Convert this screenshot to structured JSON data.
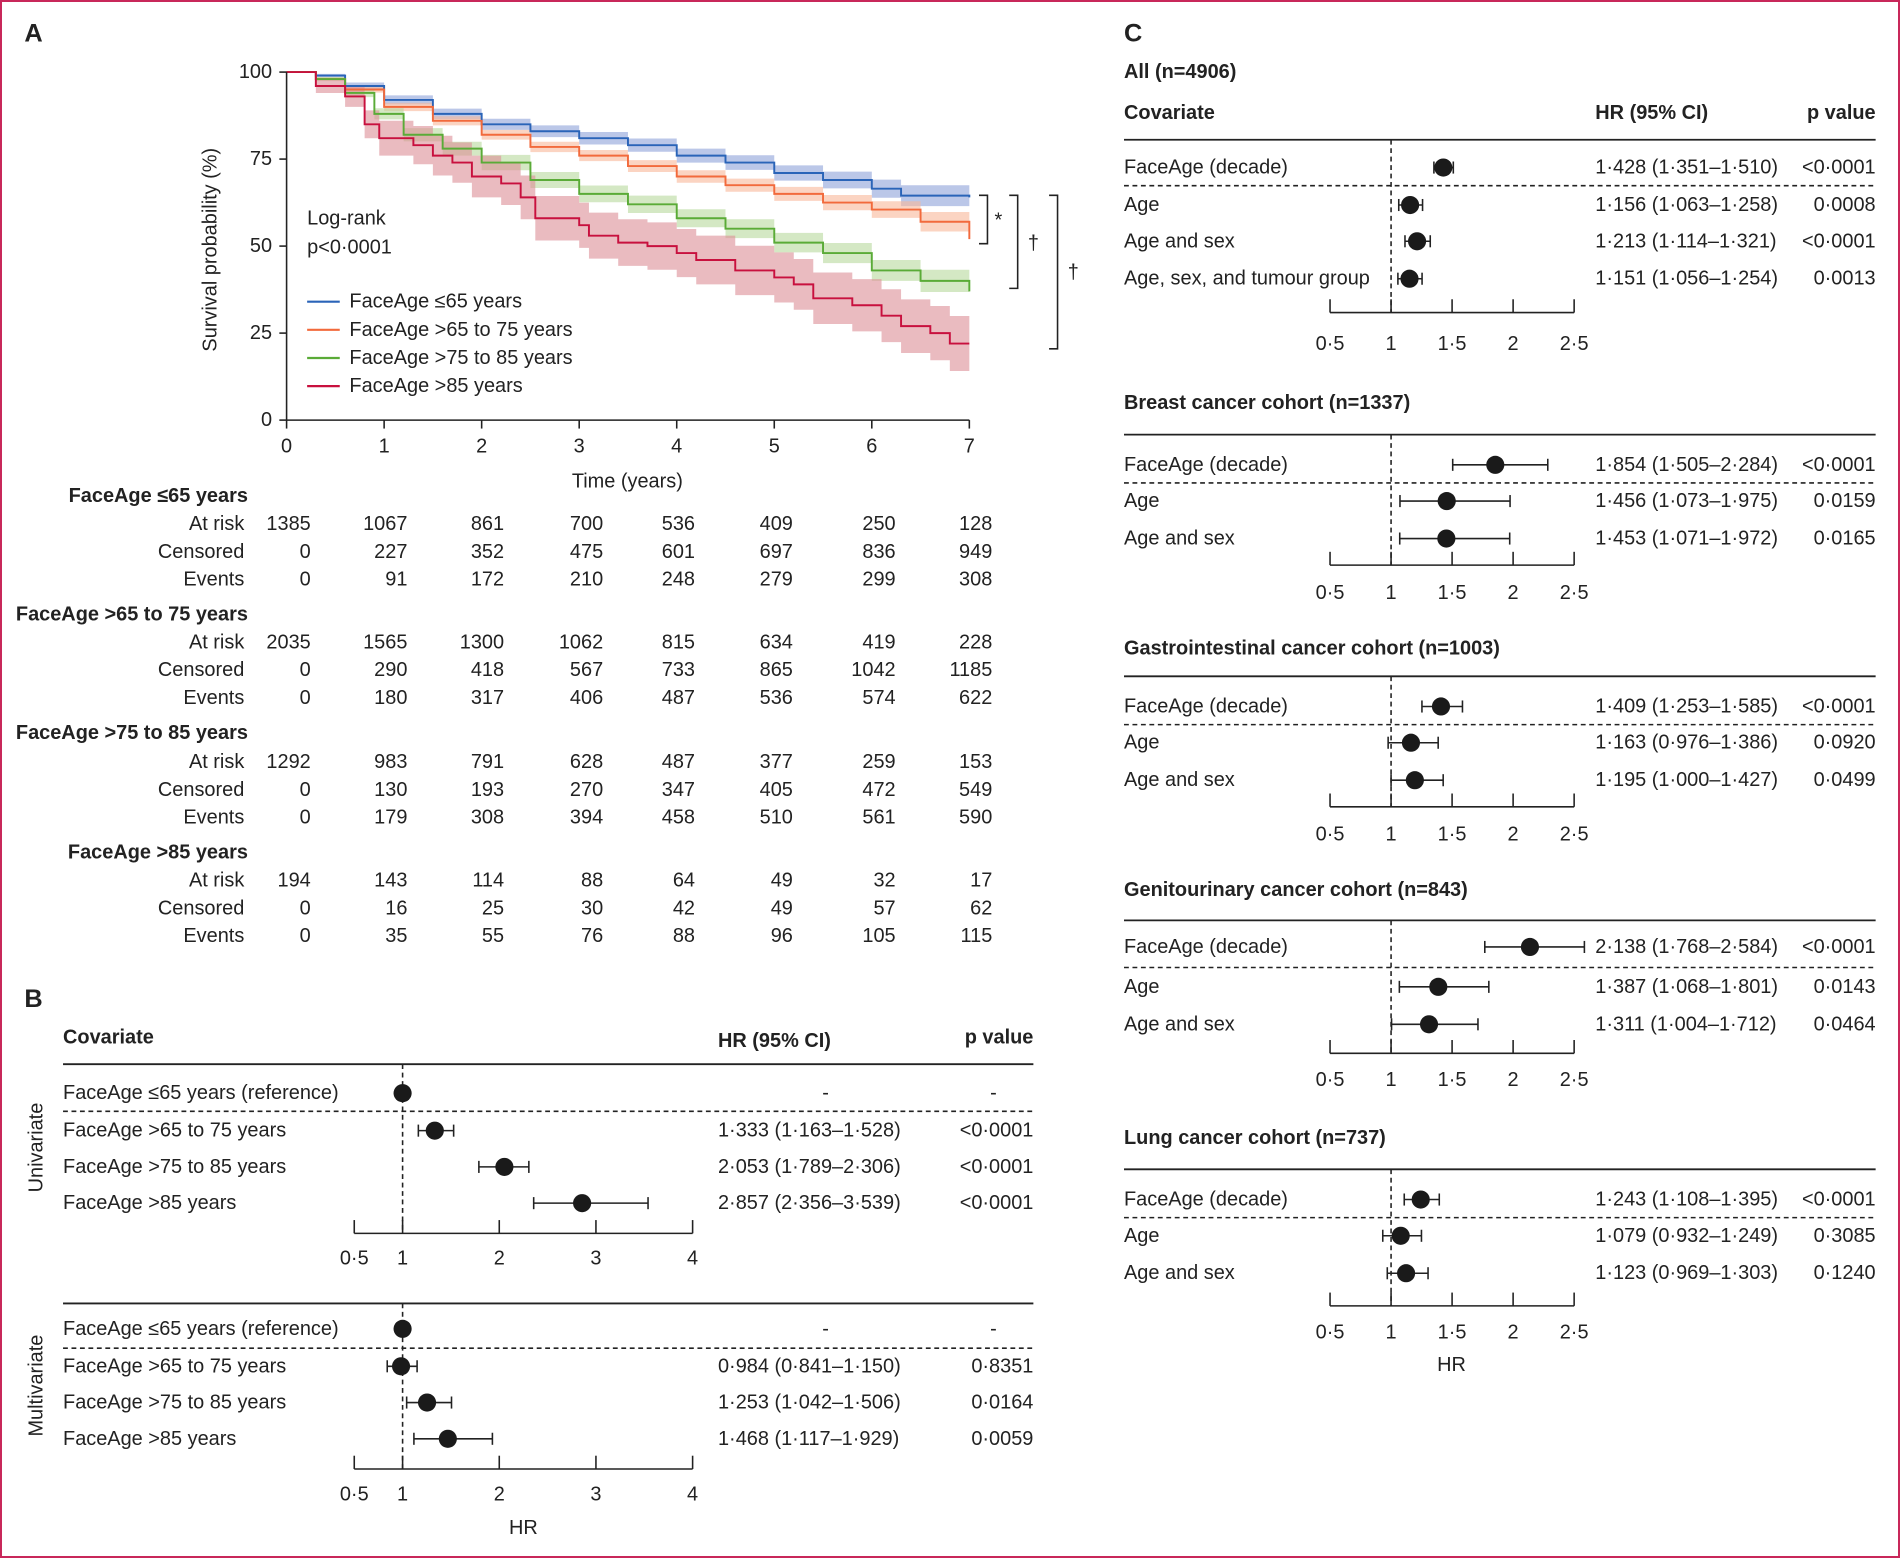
{
  "panels": {
    "a": "A",
    "b": "B",
    "c": "C"
  },
  "chart_data": [
    {
      "type": "line",
      "panel": "A",
      "xlabel": "Time (years)",
      "ylabel": "Survival probability (%)",
      "xlim": [
        0,
        7
      ],
      "ylim": [
        0,
        100
      ],
      "xticks": [
        "0",
        "1",
        "2",
        "3",
        "4",
        "5",
        "6",
        "7"
      ],
      "yticks": [
        "0",
        "25",
        "50",
        "75",
        "100"
      ],
      "grid": false,
      "legend_placement": "center-left",
      "annotation": [
        "Log-rank",
        "p<0·0001"
      ],
      "series": [
        {
          "name": "FaceAge ≤65 years",
          "color": "#2a64b8",
          "ci_color": "#8ea2d8",
          "points": [
            [
              0,
              100
            ],
            [
              0.3,
              99
            ],
            [
              0.6,
              96
            ],
            [
              1,
              92
            ],
            [
              1.5,
              88
            ],
            [
              2,
              85
            ],
            [
              2.5,
              83
            ],
            [
              3,
              81
            ],
            [
              3.5,
              79
            ],
            [
              4,
              76
            ],
            [
              4.5,
              74
            ],
            [
              5,
              71
            ],
            [
              5.5,
              69
            ],
            [
              6,
              66.5
            ],
            [
              6.3,
              64.5
            ],
            [
              7,
              64
            ]
          ],
          "ci_halfwidth": [
            0,
            0.5,
            1,
            1.3,
            1.5,
            1.6,
            1.7,
            1.8,
            1.9,
            2,
            2.1,
            2.2,
            2.4,
            2.6,
            3,
            3.6
          ]
        },
        {
          "name": "FaceAge >65 to 75 years",
          "color": "#f26a3c",
          "ci_color": "#f9b79a",
          "points": [
            [
              0,
              100
            ],
            [
              0.3,
              98
            ],
            [
              0.6,
              95
            ],
            [
              1,
              90
            ],
            [
              1.5,
              86
            ],
            [
              2,
              82
            ],
            [
              2.5,
              78.5
            ],
            [
              3,
              76
            ],
            [
              3.5,
              73
            ],
            [
              4,
              70
            ],
            [
              4.5,
              67.5
            ],
            [
              5,
              65
            ],
            [
              5.5,
              62.5
            ],
            [
              6,
              60.5
            ],
            [
              6.5,
              57
            ],
            [
              7,
              52
            ]
          ],
          "ci_halfwidth": [
            0,
            0.5,
            0.9,
            1.2,
            1.3,
            1.4,
            1.5,
            1.6,
            1.7,
            1.8,
            1.9,
            2,
            2.2,
            2.4,
            2.8,
            3.2
          ]
        },
        {
          "name": "FaceAge >75 to 85 years",
          "color": "#5aab37",
          "ci_color": "#b7d99c",
          "points": [
            [
              0,
              100
            ],
            [
              0.3,
              98
            ],
            [
              0.6,
              94
            ],
            [
              0.9,
              88
            ],
            [
              1.2,
              82
            ],
            [
              1.6,
              78
            ],
            [
              2,
              74
            ],
            [
              2.5,
              69
            ],
            [
              3,
              65
            ],
            [
              3.5,
              62
            ],
            [
              4,
              58
            ],
            [
              4.5,
              55
            ],
            [
              5,
              51
            ],
            [
              5.5,
              48
            ],
            [
              6,
              43
            ],
            [
              6.5,
              40
            ],
            [
              7,
              37
            ]
          ],
          "ci_halfwidth": [
            0,
            0.6,
            1.2,
            1.6,
            1.9,
            2,
            2.2,
            2.3,
            2.4,
            2.5,
            2.6,
            2.7,
            2.8,
            2.9,
            3,
            3.2,
            3.4
          ]
        },
        {
          "name": "FaceAge >85 years",
          "color": "#c8103e",
          "ci_color": "#dc8e96",
          "points": [
            [
              0,
              100
            ],
            [
              0.3,
              96
            ],
            [
              0.6,
              93
            ],
            [
              0.8,
              85
            ],
            [
              0.95,
              81
            ],
            [
              1.3,
              79
            ],
            [
              1.5,
              76
            ],
            [
              1.7,
              74
            ],
            [
              1.9,
              70
            ],
            [
              2.2,
              68
            ],
            [
              2.4,
              64
            ],
            [
              2.55,
              58
            ],
            [
              3,
              56
            ],
            [
              3.1,
              53
            ],
            [
              3.4,
              51
            ],
            [
              3.7,
              50
            ],
            [
              4,
              48
            ],
            [
              4.2,
              46
            ],
            [
              4.6,
              43
            ],
            [
              5,
              41
            ],
            [
              5.2,
              39
            ],
            [
              5.4,
              35
            ],
            [
              5.8,
              33
            ],
            [
              6.1,
              30
            ],
            [
              6.3,
              27
            ],
            [
              6.6,
              25
            ],
            [
              6.8,
              22
            ],
            [
              7,
              22
            ]
          ],
          "ci_halfwidth": [
            0,
            2,
            3,
            4,
            5,
            5.5,
            5.7,
            5.8,
            6,
            6.2,
            6.3,
            6.4,
            6.5,
            6.6,
            6.7,
            6.8,
            6.9,
            7,
            7.1,
            7.2,
            7.3,
            7.4,
            7.5,
            7.6,
            7.7,
            7.8,
            7.9,
            8
          ]
        }
      ],
      "significance": [
        {
          "pair": [
            "FaceAge ≤65 years",
            "FaceAge >65 to 75 years"
          ],
          "label": "*"
        },
        {
          "pair": [
            "FaceAge ≤65 years",
            "FaceAge >75 to 85 years"
          ],
          "label": "†"
        },
        {
          "pair": [
            "FaceAge ≤65 years",
            "FaceAge >85 years"
          ],
          "label": "†"
        }
      ]
    },
    {
      "type": "table",
      "panel": "A",
      "columns": [
        "0",
        "1",
        "2",
        "3",
        "4",
        "5",
        "6",
        "7"
      ],
      "groups": [
        {
          "name": "FaceAge ≤65 years",
          "rows": [
            {
              "label": "At risk",
              "values": [
                "1385",
                "1067",
                "861",
                "700",
                "536",
                "409",
                "250",
                "128"
              ]
            },
            {
              "label": "Censored",
              "values": [
                "0",
                "227",
                "352",
                "475",
                "601",
                "697",
                "836",
                "949"
              ]
            },
            {
              "label": "Events",
              "values": [
                "0",
                "91",
                "172",
                "210",
                "248",
                "279",
                "299",
                "308"
              ]
            }
          ]
        },
        {
          "name": "FaceAge >65 to 75 years",
          "rows": [
            {
              "label": "At risk",
              "values": [
                "2035",
                "1565",
                "1300",
                "1062",
                "815",
                "634",
                "419",
                "228"
              ]
            },
            {
              "label": "Censored",
              "values": [
                "0",
                "290",
                "418",
                "567",
                "733",
                "865",
                "1042",
                "1185"
              ]
            },
            {
              "label": "Events",
              "values": [
                "0",
                "180",
                "317",
                "406",
                "487",
                "536",
                "574",
                "622"
              ]
            }
          ]
        },
        {
          "name": "FaceAge >75 to 85 years",
          "rows": [
            {
              "label": "At risk",
              "values": [
                "1292",
                "983",
                "791",
                "628",
                "487",
                "377",
                "259",
                "153"
              ]
            },
            {
              "label": "Censored",
              "values": [
                "0",
                "130",
                "193",
                "270",
                "347",
                "405",
                "472",
                "549"
              ]
            },
            {
              "label": "Events",
              "values": [
                "0",
                "179",
                "308",
                "394",
                "458",
                "510",
                "561",
                "590"
              ]
            }
          ]
        },
        {
          "name": "FaceAge >85 years",
          "rows": [
            {
              "label": "At risk",
              "values": [
                "194",
                "143",
                "114",
                "88",
                "64",
                "49",
                "32",
                "17"
              ]
            },
            {
              "label": "Censored",
              "values": [
                "0",
                "16",
                "25",
                "30",
                "42",
                "49",
                "57",
                "62"
              ]
            },
            {
              "label": "Events",
              "values": [
                "0",
                "35",
                "55",
                "76",
                "88",
                "96",
                "105",
                "115"
              ]
            }
          ]
        }
      ]
    },
    {
      "type": "forest",
      "panel": "B",
      "header": {
        "covariate": "Covariate",
        "hr": "HR (95% CI)",
        "p": "p value"
      },
      "xlabel": "HR",
      "xticks": [
        0.5,
        1,
        2,
        3,
        4
      ],
      "xtick_labels": [
        "0·5",
        "1",
        "2",
        "3",
        "4"
      ],
      "reference_line": 1,
      "sections": [
        {
          "name": "Univariate",
          "rows": [
            {
              "label": "FaceAge ≤65 years (reference)",
              "hr": 1,
              "lo": null,
              "hi": null,
              "hr_text": "-",
              "p": "-"
            },
            {
              "label": "FaceAge >65 to 75 years",
              "hr": 1.333,
              "lo": 1.163,
              "hi": 1.528,
              "hr_text": "1·333 (1·163–1·528)",
              "p": "<0·0001"
            },
            {
              "label": "FaceAge >75 to 85 years",
              "hr": 2.053,
              "lo": 1.789,
              "hi": 2.306,
              "hr_text": "2·053 (1·789–2·306)",
              "p": "<0·0001"
            },
            {
              "label": "FaceAge >85 years",
              "hr": 2.857,
              "lo": 2.356,
              "hi": 3.539,
              "hr_text": "2·857 (2·356–3·539)",
              "p": "<0·0001"
            }
          ]
        },
        {
          "name": "Multivariate",
          "rows": [
            {
              "label": "FaceAge ≤65 years (reference)",
              "hr": 1,
              "lo": null,
              "hi": null,
              "hr_text": "-",
              "p": "-"
            },
            {
              "label": "FaceAge >65 to 75 years",
              "hr": 0.984,
              "lo": 0.841,
              "hi": 1.15,
              "hr_text": "0·984 (0·841–1·150)",
              "p": "0·8351"
            },
            {
              "label": "FaceAge >75 to 85 years",
              "hr": 1.253,
              "lo": 1.042,
              "hi": 1.506,
              "hr_text": "1·253 (1·042–1·506)",
              "p": "0·0164"
            },
            {
              "label": "FaceAge >85 years",
              "hr": 1.468,
              "lo": 1.117,
              "hi": 1.929,
              "hr_text": "1·468 (1·117–1·929)",
              "p": "0·0059"
            }
          ]
        }
      ]
    },
    {
      "type": "forest",
      "panel": "C",
      "header": {
        "covariate": "Covariate",
        "hr": "HR (95% CI)",
        "p": "p value"
      },
      "xlabel": "HR",
      "xticks": [
        0.5,
        1,
        1.5,
        2,
        2.5
      ],
      "xtick_labels": [
        "0·5",
        "1",
        "1·5",
        "2",
        "2·5"
      ],
      "reference_line": 1,
      "sections": [
        {
          "name": "All (n=4906)",
          "rows": [
            {
              "label": "FaceAge (decade)",
              "hr": 1.428,
              "lo": 1.351,
              "hi": 1.51,
              "hr_text": "1·428 (1·351–1·510)",
              "p": "<0·0001"
            },
            {
              "label": "Age",
              "hr": 1.156,
              "lo": 1.063,
              "hi": 1.258,
              "hr_text": "1·156 (1·063–1·258)",
              "p": "0·0008"
            },
            {
              "label": "Age and sex",
              "hr": 1.213,
              "lo": 1.114,
              "hi": 1.321,
              "hr_text": "1·213 (1·114–1·321)",
              "p": "<0·0001"
            },
            {
              "label": "Age, sex, and tumour group",
              "hr": 1.151,
              "lo": 1.056,
              "hi": 1.254,
              "hr_text": "1·151 (1·056–1·254)",
              "p": "0·0013"
            }
          ]
        },
        {
          "name": "Breast cancer cohort (n=1337)",
          "rows": [
            {
              "label": "FaceAge (decade)",
              "hr": 1.854,
              "lo": 1.505,
              "hi": 2.284,
              "hr_text": "1·854 (1·505–2·284)",
              "p": "<0·0001"
            },
            {
              "label": "Age",
              "hr": 1.456,
              "lo": 1.073,
              "hi": 1.975,
              "hr_text": "1·456 (1·073–1·975)",
              "p": "0·0159"
            },
            {
              "label": "Age and sex",
              "hr": 1.453,
              "lo": 1.071,
              "hi": 1.972,
              "hr_text": "1·453 (1·071–1·972)",
              "p": "0·0165"
            }
          ]
        },
        {
          "name": "Gastrointestinal cancer cohort (n=1003)",
          "rows": [
            {
              "label": "FaceAge (decade)",
              "hr": 1.409,
              "lo": 1.253,
              "hi": 1.585,
              "hr_text": "1·409 (1·253–1·585)",
              "p": "<0·0001"
            },
            {
              "label": "Age",
              "hr": 1.163,
              "lo": 0.976,
              "hi": 1.386,
              "hr_text": "1·163 (0·976–1·386)",
              "p": "0·0920"
            },
            {
              "label": "Age and sex",
              "hr": 1.195,
              "lo": 1.0,
              "hi": 1.427,
              "hr_text": "1·195 (1·000–1·427)",
              "p": "0·0499"
            }
          ]
        },
        {
          "name": "Genitourinary cancer cohort (n=843)",
          "rows": [
            {
              "label": "FaceAge (decade)",
              "hr": 2.138,
              "lo": 1.768,
              "hi": 2.584,
              "hr_text": "2·138 (1·768–2·584)",
              "p": "<0·0001"
            },
            {
              "label": "Age",
              "hr": 1.387,
              "lo": 1.068,
              "hi": 1.801,
              "hr_text": "1·387 (1·068–1·801)",
              "p": "0·0143"
            },
            {
              "label": "Age and sex",
              "hr": 1.311,
              "lo": 1.004,
              "hi": 1.712,
              "hr_text": "1·311 (1·004–1·712)",
              "p": "0·0464"
            }
          ]
        },
        {
          "name": "Lung cancer cohort (n=737)",
          "rows": [
            {
              "label": "FaceAge (decade)",
              "hr": 1.243,
              "lo": 1.108,
              "hi": 1.395,
              "hr_text": "1·243 (1·108–1·395)",
              "p": "<0·0001"
            },
            {
              "label": "Age",
              "hr": 1.079,
              "lo": 0.932,
              "hi": 1.249,
              "hr_text": "1·079 (0·932–1·249)",
              "p": "0·3085"
            },
            {
              "label": "Age and sex",
              "hr": 1.123,
              "lo": 0.969,
              "hi": 1.303,
              "hr_text": "1·123 (0·969–1·303)",
              "p": "0·1240"
            }
          ]
        }
      ]
    }
  ]
}
